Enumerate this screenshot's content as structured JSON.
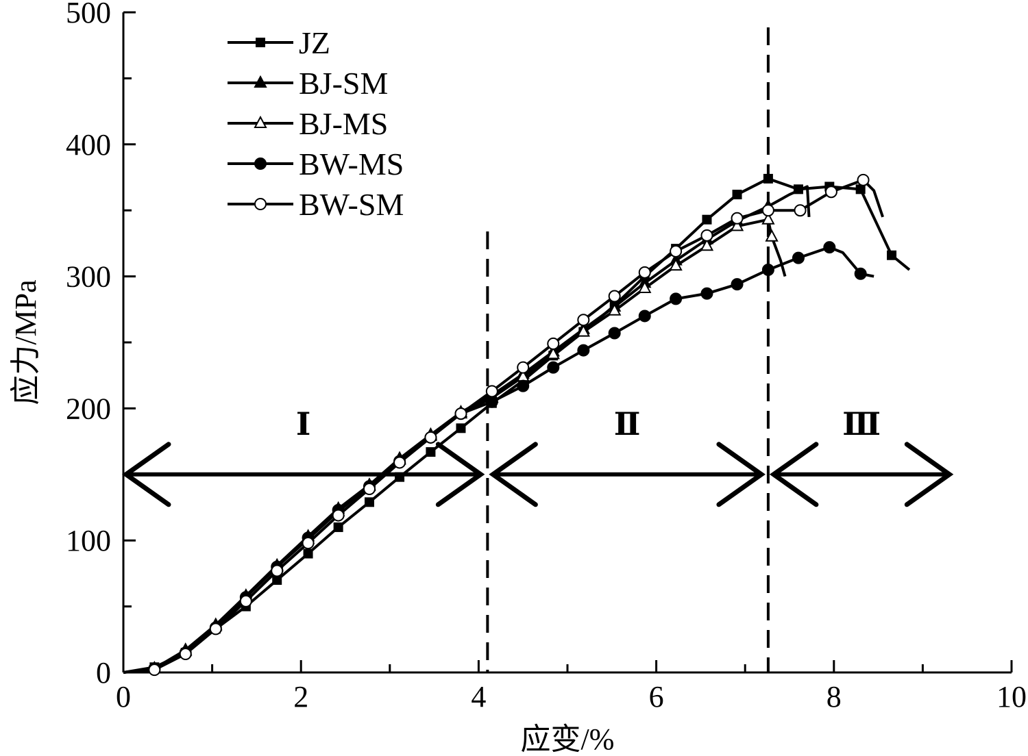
{
  "chart_data": {
    "type": "line",
    "title": "",
    "xlabel": "应变/%",
    "ylabel": "应力/MPa",
    "xlim": [
      0,
      10
    ],
    "ylim": [
      0,
      500
    ],
    "xticks": [
      "0",
      "2",
      "4",
      "6",
      "8",
      "10"
    ],
    "yticks": [
      "0",
      "100",
      "200",
      "300",
      "400",
      "500"
    ],
    "legend_position": "top-left",
    "series": [
      {
        "name": "JZ",
        "marker": "filled-square",
        "points": [
          [
            0,
            0
          ],
          [
            0.35,
            4
          ],
          [
            0.7,
            15
          ],
          [
            1.04,
            33
          ],
          [
            1.38,
            50
          ],
          [
            1.73,
            70
          ],
          [
            2.08,
            90
          ],
          [
            2.42,
            110
          ],
          [
            2.77,
            129
          ],
          [
            3.11,
            148
          ],
          [
            3.46,
            167
          ],
          [
            3.8,
            185
          ],
          [
            4.15,
            204
          ],
          [
            4.5,
            221
          ],
          [
            4.84,
            240
          ],
          [
            5.18,
            258
          ],
          [
            5.53,
            278
          ],
          [
            5.87,
            300
          ],
          [
            6.22,
            321
          ],
          [
            6.57,
            343
          ],
          [
            6.91,
            362
          ],
          [
            7.26,
            374
          ],
          [
            7.6,
            366
          ],
          [
            7.95,
            368
          ],
          [
            8.3,
            366
          ],
          [
            8.65,
            316
          ],
          [
            8.85,
            305
          ]
        ]
      },
      {
        "name": "BJ-SM",
        "marker": "filled-triangle",
        "points": [
          [
            0,
            0
          ],
          [
            0.35,
            3
          ],
          [
            0.7,
            17
          ],
          [
            1.04,
            36
          ],
          [
            1.38,
            58
          ],
          [
            1.73,
            81
          ],
          [
            2.08,
            103
          ],
          [
            2.42,
            124
          ],
          [
            2.77,
            142
          ],
          [
            3.11,
            162
          ],
          [
            3.46,
            180
          ],
          [
            3.8,
            197
          ],
          [
            4.15,
            210
          ],
          [
            4.5,
            226
          ],
          [
            4.84,
            243
          ],
          [
            5.18,
            260
          ],
          [
            5.53,
            277
          ],
          [
            5.87,
            295
          ],
          [
            6.22,
            312
          ],
          [
            6.57,
            328
          ],
          [
            6.91,
            342
          ],
          [
            7.26,
            353
          ],
          [
            7.5,
            362
          ],
          [
            7.7,
            368
          ],
          [
            7.72,
            345
          ]
        ]
      },
      {
        "name": "BJ-MS",
        "marker": "open-triangle",
        "points": [
          [
            0,
            0
          ],
          [
            0.35,
            3
          ],
          [
            0.7,
            16
          ],
          [
            1.04,
            35
          ],
          [
            1.38,
            57
          ],
          [
            1.73,
            80
          ],
          [
            2.08,
            101
          ],
          [
            2.42,
            122
          ],
          [
            2.77,
            141
          ],
          [
            3.11,
            161
          ],
          [
            3.46,
            179
          ],
          [
            3.8,
            196
          ],
          [
            4.15,
            208
          ],
          [
            4.5,
            224
          ],
          [
            4.84,
            241
          ],
          [
            5.18,
            258
          ],
          [
            5.53,
            274
          ],
          [
            5.87,
            291
          ],
          [
            6.22,
            308
          ],
          [
            6.57,
            323
          ],
          [
            6.91,
            338
          ],
          [
            7.26,
            343
          ],
          [
            7.3,
            330
          ],
          [
            7.4,
            312
          ],
          [
            7.45,
            300
          ]
        ]
      },
      {
        "name": "BW-MS",
        "marker": "filled-circle",
        "points": [
          [
            0,
            0
          ],
          [
            0.35,
            3
          ],
          [
            0.7,
            15
          ],
          [
            1.04,
            34
          ],
          [
            1.38,
            57
          ],
          [
            1.73,
            80
          ],
          [
            2.08,
            102
          ],
          [
            2.42,
            123
          ],
          [
            2.77,
            141
          ],
          [
            3.11,
            160
          ],
          [
            3.46,
            178
          ],
          [
            3.8,
            196
          ],
          [
            4.15,
            205
          ],
          [
            4.5,
            217
          ],
          [
            4.84,
            231
          ],
          [
            5.18,
            244
          ],
          [
            5.53,
            257
          ],
          [
            5.87,
            270
          ],
          [
            6.22,
            283
          ],
          [
            6.57,
            287
          ],
          [
            6.91,
            294
          ],
          [
            7.26,
            305
          ],
          [
            7.6,
            314
          ],
          [
            7.95,
            322
          ],
          [
            8.1,
            318
          ],
          [
            8.3,
            302
          ],
          [
            8.45,
            300
          ]
        ]
      },
      {
        "name": "BW-SM",
        "marker": "open-circle",
        "points": [
          [
            0,
            0
          ],
          [
            0.35,
            2
          ],
          [
            0.7,
            14
          ],
          [
            1.04,
            33
          ],
          [
            1.38,
            54
          ],
          [
            1.73,
            77
          ],
          [
            2.08,
            98
          ],
          [
            2.42,
            119
          ],
          [
            2.77,
            139
          ],
          [
            3.11,
            159
          ],
          [
            3.46,
            178
          ],
          [
            3.8,
            196
          ],
          [
            4.15,
            213
          ],
          [
            4.5,
            231
          ],
          [
            4.84,
            249
          ],
          [
            5.18,
            267
          ],
          [
            5.53,
            285
          ],
          [
            5.87,
            303
          ],
          [
            6.22,
            319
          ],
          [
            6.57,
            331
          ],
          [
            6.91,
            344
          ],
          [
            7.26,
            350
          ],
          [
            7.62,
            350
          ],
          [
            7.97,
            364
          ],
          [
            8.33,
            373
          ],
          [
            8.45,
            365
          ],
          [
            8.55,
            345
          ]
        ]
      }
    ],
    "dividers": [
      4.1,
      7.26
    ],
    "regions": [
      {
        "label": "Ⅰ",
        "from": 0,
        "to": 4.1
      },
      {
        "label": "Ⅱ",
        "from": 4.1,
        "to": 7.26
      },
      {
        "label": "Ⅲ",
        "from": 7.26,
        "to": 9.3
      }
    ],
    "arrow_level": 150
  }
}
